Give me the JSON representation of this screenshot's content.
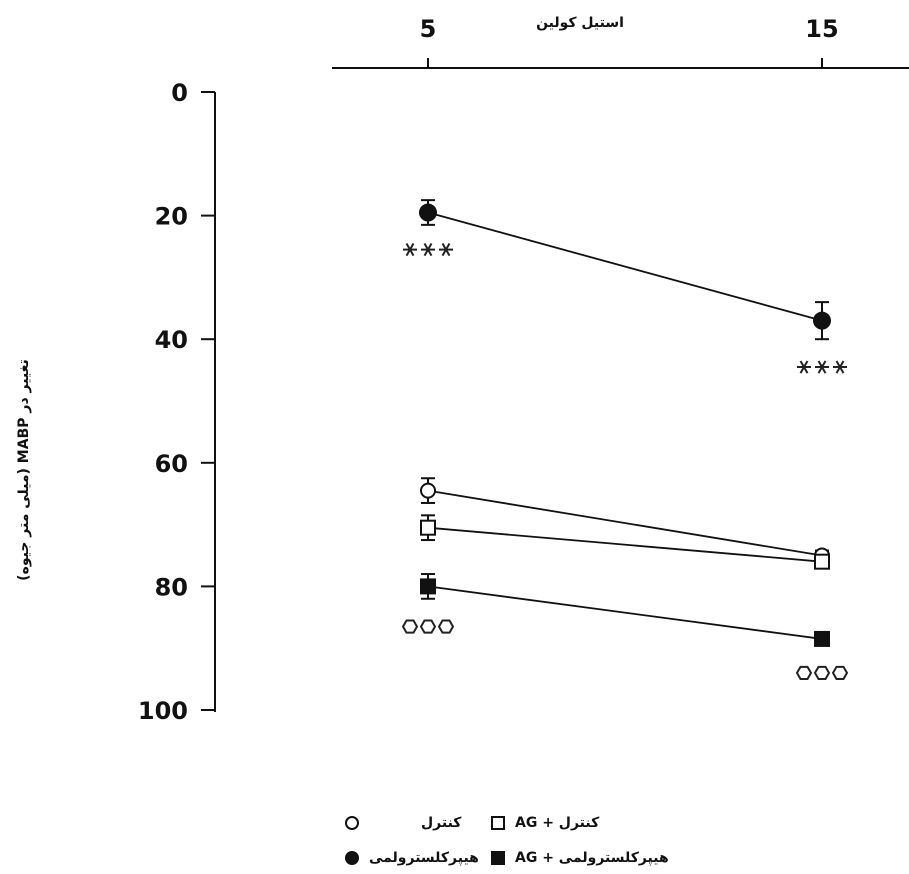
{
  "chart_data": {
    "type": "line",
    "x_axis": {
      "label": "استیل کولین",
      "categories": [
        "5",
        "15"
      ],
      "position": "top"
    },
    "y_axis": {
      "label": "تغییر در MABP (میلی متر جیوه)",
      "ticks": [
        "0",
        "20",
        "40",
        "60",
        "80",
        "100"
      ],
      "ylim": [
        0,
        100
      ],
      "inverted": true
    },
    "series": [
      {
        "name": "هیپرکلسترولمی",
        "marker": "filled-circle",
        "values": [
          19.5,
          37
        ],
        "error": [
          2.0,
          3.0
        ]
      },
      {
        "name": "کنترل",
        "marker": "open-circle",
        "values": [
          64.5,
          75
        ],
        "error": [
          2.0,
          0.8
        ]
      },
      {
        "name": "کنترل + AG",
        "marker": "open-square",
        "values": [
          70.5,
          76
        ],
        "error": [
          2.0,
          0.8
        ]
      },
      {
        "name": "هیپرکلسترولمی + AG",
        "marker": "filled-square",
        "values": [
          80,
          88.5
        ],
        "error": [
          2.0,
          0.8
        ]
      }
    ],
    "annotations": [
      {
        "text": "***",
        "style": "star",
        "x": "5",
        "y": 25.5
      },
      {
        "text": "***",
        "style": "star",
        "x": "15",
        "y": 44.5
      },
      {
        "text": "ooo",
        "style": "hexagon",
        "x": "5",
        "y": 86.5
      },
      {
        "text": "ooo",
        "style": "hexagon",
        "x": "15",
        "y": 94
      }
    ],
    "legend_placement": "bottom"
  },
  "legend": {
    "control": "کنترل",
    "control_ag": "کنترل + AG",
    "hyper": "هیپرکلسترولمی",
    "hyper_ag": "هیپرکلسترولمی + AG"
  }
}
